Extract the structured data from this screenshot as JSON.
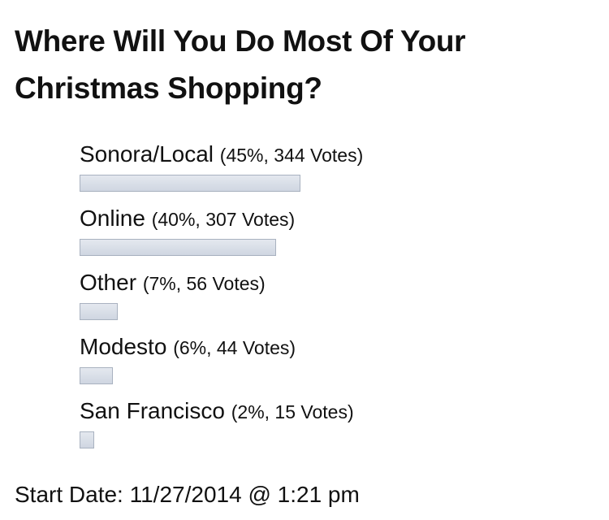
{
  "title": "Where Will You Do Most Of Your Christmas Shopping?",
  "options": [
    {
      "label": "Sonora/Local",
      "percent": 45,
      "result": "(45%, 344 Votes)"
    },
    {
      "label": "Online",
      "percent": 40,
      "result": "(40%, 307 Votes)"
    },
    {
      "label": "Other",
      "percent": 7,
      "result": "(7%, 56 Votes)"
    },
    {
      "label": "Modesto",
      "percent": 6,
      "result": "(6%, 44 Votes)"
    },
    {
      "label": "San Francisco",
      "percent": 2,
      "result": "(2%, 15 Votes)"
    }
  ],
  "start_date": "Start Date: 11/27/2014 @ 1:21 pm"
}
